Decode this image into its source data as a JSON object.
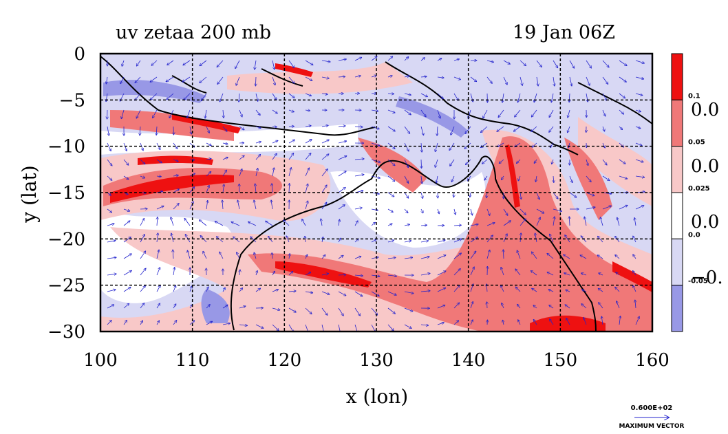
{
  "chart_data": {
    "type": "heatmap",
    "title_left": "uv zetaa 200 mb",
    "title_right": "19 Jan 06Z",
    "xlabel": "x (lon)",
    "ylabel": "y (lat)",
    "xlim": [
      100,
      160
    ],
    "ylim": [
      -30,
      0
    ],
    "x_ticks": [
      "100",
      "110",
      "120",
      "130",
      "140",
      "150",
      "160"
    ],
    "y_ticks": [
      "0",
      "−5",
      "−10",
      "−15",
      "−20",
      "−25",
      "−30"
    ],
    "grid": true,
    "vectors": true,
    "colorbar": {
      "placement": "right",
      "colors": [
        "#ee1111",
        "#f07878",
        "#f8c8c8",
        "#ffffff",
        "#d8d8f4",
        "#9898e6"
      ],
      "contour_levels": [
        "0.1",
        "0.05",
        "0.025",
        "0.0",
        "-0.05"
      ],
      "side_labels": [
        "0.0",
        "0.0",
        "0.0",
        "−0."
      ]
    },
    "vector_legend": {
      "value": "0.600E+02",
      "label": "MAXIMUM VECTOR"
    }
  }
}
